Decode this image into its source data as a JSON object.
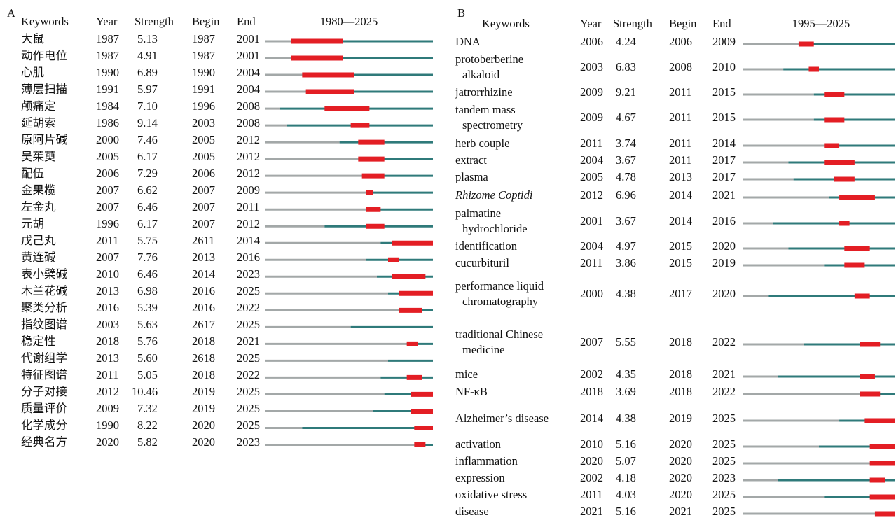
{
  "chart_data": [
    {
      "type": "burst",
      "panel_label": "A",
      "headers": [
        "Keywords",
        "Year",
        "Strength",
        "Begin",
        "End"
      ],
      "range_label": "1980—2025",
      "xlim": [
        1980,
        2025
      ],
      "colors": {
        "before": "#a3a8a8",
        "after": "#2f7a7a",
        "burst": "#e31e24"
      },
      "keywords": [
        "大鼠",
        "动作电位",
        "心肌",
        "薄层扫描",
        "颅痛定",
        "延胡索",
        "原阿片碱",
        "吴茱萸",
        "配伍",
        "金果榄",
        "左金丸",
        "元胡",
        "戊己丸",
        "黄连碱",
        "表小檗碱",
        "木兰花碱",
        "聚类分析",
        "指纹图谱",
        "稳定性",
        "代谢组学",
        "特征图谱",
        "分子对接",
        "质量评价",
        "化学成分",
        "经典名方"
      ],
      "year": [
        1987,
        1987,
        1990,
        1991,
        1984,
        1986,
        2000,
        2005,
        2006,
        2007,
        2007,
        1996,
        2011,
        2007,
        2010,
        2013,
        2016,
        2003,
        2018,
        2013,
        2011,
        2012,
        2009,
        1990,
        2020
      ],
      "strength": [
        "5.13",
        "4.91",
        "6.89",
        "5.97",
        "7.10",
        "9.14",
        "7.46",
        "6.17",
        "7.29",
        "6.62",
        "6.46",
        "6.17",
        "5.75",
        "7.76",
        "6.46",
        "6.98",
        "5.39",
        "5.63",
        "5.76",
        "5.60",
        "5.05",
        "10.46",
        "7.32",
        "8.22",
        "5.82"
      ],
      "begin": [
        1987,
        1987,
        1990,
        1991,
        1996,
        2003,
        2005,
        2005,
        2006,
        2007,
        2007,
        2007,
        2611,
        2013,
        2014,
        2016,
        2016,
        2617,
        2018,
        2618,
        2018,
        2019,
        2019,
        2020,
        2020
      ],
      "end": [
        2001,
        2001,
        2004,
        2004,
        2008,
        2008,
        2012,
        2012,
        2012,
        2009,
        2011,
        2012,
        2014,
        2016,
        2023,
        2025,
        2022,
        2025,
        2021,
        2025,
        2022,
        2025,
        2025,
        2025,
        2023
      ]
    },
    {
      "type": "burst",
      "panel_label": "B",
      "headers": [
        "Keywords",
        "Year",
        "Strength",
        "Begin",
        "End"
      ],
      "range_label": "1995—2025",
      "xlim": [
        1995,
        2025
      ],
      "colors": {
        "before": "#a3a8a8",
        "after": "#2f7a7a",
        "burst": "#e31e24"
      },
      "italic": [
        7
      ],
      "keywords": [
        "DNA",
        "protoberberine\nalkaloid",
        "jatrorrhizine",
        "tandem mass\nspectrometry",
        "herb couple",
        "extract",
        "plasma",
        "Rhizome Coptidi",
        "palmatine\nhydrochloride",
        "identification",
        "cucurbituril",
        "performance liquid\nchromatography",
        "traditional Chinese\nmedicine",
        "mice",
        "NF-κB",
        "Alzheimer’s disease",
        "activation",
        "inflammation",
        "expression",
        "oxidative stress",
        "disease"
      ],
      "year": [
        2006,
        2003,
        2009,
        2009,
        2011,
        2004,
        2005,
        2012,
        2001,
        2004,
        2011,
        2000,
        2007,
        2002,
        2018,
        2014,
        2010,
        2020,
        2002,
        2011,
        2021
      ],
      "strength": [
        "4.24",
        "6.83",
        "9.21",
        "4.67",
        "3.74",
        "3.67",
        "4.78",
        "6.96",
        "3.67",
        "4.97",
        "3.86",
        "4.38",
        "5.55",
        "4.35",
        "3.69",
        "4.38",
        "5.16",
        "5.07",
        "4.18",
        "4.03",
        "5.16"
      ],
      "begin": [
        2006,
        2008,
        2011,
        2011,
        2011,
        2011,
        2013,
        2014,
        2014,
        2015,
        2015,
        2017,
        2018,
        2018,
        2018,
        2019,
        2020,
        2020,
        2020,
        2020,
        2021
      ],
      "end": [
        2009,
        2010,
        2015,
        2015,
        2014,
        2017,
        2017,
        2021,
        2016,
        2020,
        2019,
        2020,
        2022,
        2021,
        2022,
        2025,
        2025,
        2025,
        2023,
        2025,
        2025
      ]
    }
  ]
}
